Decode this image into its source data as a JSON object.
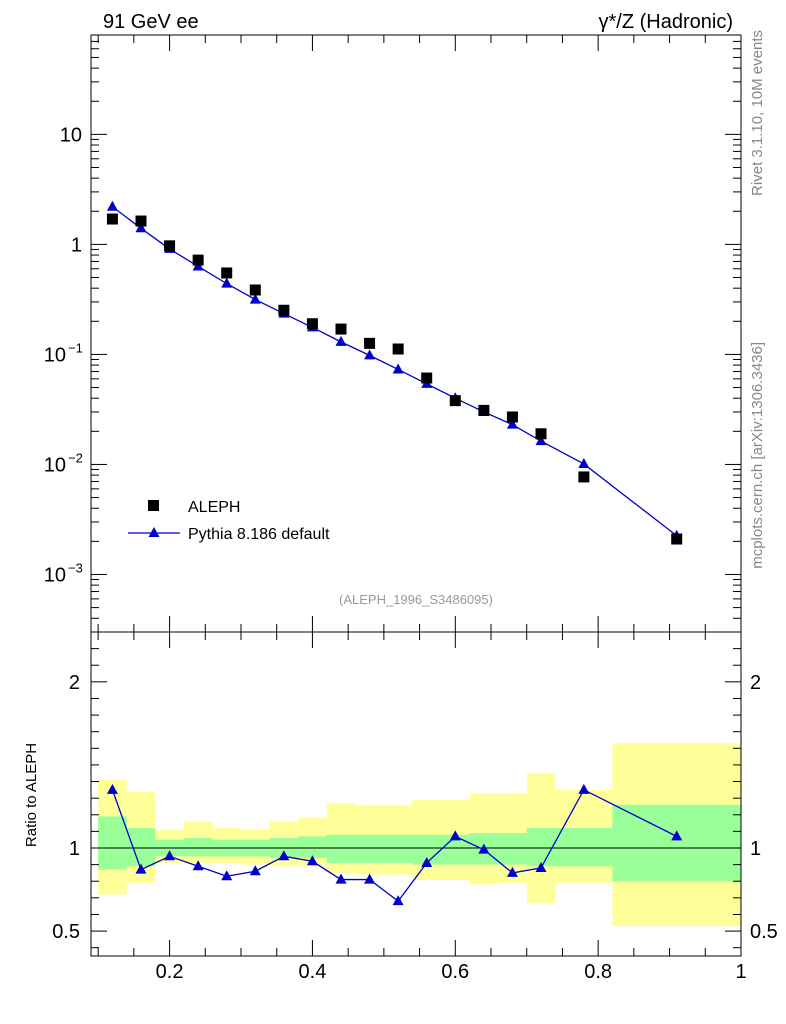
{
  "header": {
    "left_title": "91 GeV ee",
    "right_title_prefix": "γ*/Z (Hadronic)"
  },
  "side_labels": {
    "top": "Rivet 3.1.10,  10M events",
    "bottom": "mcplots.cern.ch [arXiv:1306.3436]"
  },
  "analysis_id": "(ALEPH_1996_S3486095)",
  "legend": {
    "data_label": "ALEPH",
    "mc_label": "Pythia 8.186 default"
  },
  "colors": {
    "mc": "#0000cc",
    "band_inner": "#99ff99",
    "band_outer": "#ffff99",
    "data": "#000000"
  },
  "chart_data": [
    {
      "type": "scatter",
      "panel": "main",
      "yscale": "log",
      "xlim": [
        0.09,
        1.0
      ],
      "ylim": [
        0.0003,
        80
      ],
      "y_tick_labels": [
        {
          "value": 10,
          "label": "10"
        },
        {
          "value": 1,
          "label": "1"
        },
        {
          "value": 0.1,
          "label": "10",
          "exp": "−1"
        },
        {
          "value": 0.01,
          "label": "10",
          "exp": "−2"
        },
        {
          "value": 0.001,
          "label": "10",
          "exp": "−3"
        }
      ],
      "series": [
        {
          "name": "ALEPH",
          "marker": "square",
          "x": [
            0.12,
            0.16,
            0.2,
            0.24,
            0.28,
            0.32,
            0.36,
            0.4,
            0.44,
            0.48,
            0.52,
            0.56,
            0.6,
            0.64,
            0.68,
            0.72,
            0.78,
            0.91
          ],
          "y": [
            1.7,
            1.63,
            0.97,
            0.72,
            0.55,
            0.385,
            0.252,
            0.19,
            0.17,
            0.126,
            0.112,
            0.061,
            0.038,
            0.031,
            0.027,
            0.019,
            0.0077,
            0.0021
          ]
        },
        {
          "name": "Pythia 8.186 default",
          "marker": "triangle",
          "x": [
            0.12,
            0.16,
            0.2,
            0.24,
            0.28,
            0.32,
            0.36,
            0.4,
            0.44,
            0.48,
            0.52,
            0.56,
            0.6,
            0.64,
            0.68,
            0.72,
            0.78,
            0.91
          ],
          "y": [
            2.2,
            1.4,
            0.91,
            0.63,
            0.44,
            0.315,
            0.235,
            0.176,
            0.13,
            0.098,
            0.073,
            0.054,
            0.04,
            0.03,
            0.023,
            0.0163,
            0.0101,
            0.00225
          ]
        }
      ]
    },
    {
      "type": "line",
      "panel": "ratio",
      "ylabel": "Ratio to ALEPH",
      "xlim": [
        0.09,
        1.0
      ],
      "ylim": [
        0.35,
        2.3
      ],
      "x_tick_labels": [
        "0.2",
        "0.4",
        "0.6",
        "0.8",
        "1"
      ],
      "x_ticks": [
        0.2,
        0.4,
        0.6,
        0.8,
        1.0
      ],
      "y_tick_labels": [
        "0.5",
        "1",
        "2"
      ],
      "y_ticks": [
        0.5,
        1.0,
        2.0
      ],
      "bands": {
        "bin_edges": [
          [
            0.1,
            0.14
          ],
          [
            0.14,
            0.18
          ],
          [
            0.18,
            0.22
          ],
          [
            0.22,
            0.26
          ],
          [
            0.26,
            0.3
          ],
          [
            0.3,
            0.34
          ],
          [
            0.34,
            0.38
          ],
          [
            0.38,
            0.42
          ],
          [
            0.42,
            0.46
          ],
          [
            0.46,
            0.5
          ],
          [
            0.5,
            0.54
          ],
          [
            0.54,
            0.58
          ],
          [
            0.58,
            0.62
          ],
          [
            0.62,
            0.66
          ],
          [
            0.66,
            0.7
          ],
          [
            0.7,
            0.74
          ],
          [
            0.74,
            0.82
          ],
          [
            0.82,
            1.0
          ]
        ],
        "inner_low": [
          0.87,
          0.89,
          0.95,
          0.95,
          0.95,
          0.95,
          0.94,
          0.94,
          0.91,
          0.91,
          0.91,
          0.9,
          0.9,
          0.9,
          0.9,
          0.89,
          0.89,
          0.8
        ],
        "inner_high": [
          1.19,
          1.12,
          1.05,
          1.06,
          1.05,
          1.05,
          1.06,
          1.07,
          1.08,
          1.08,
          1.08,
          1.08,
          1.08,
          1.09,
          1.09,
          1.12,
          1.12,
          1.26
        ],
        "outer_low": [
          0.72,
          0.79,
          0.91,
          0.91,
          0.91,
          0.9,
          0.89,
          0.89,
          0.85,
          0.84,
          0.84,
          0.81,
          0.81,
          0.78,
          0.79,
          0.67,
          0.79,
          0.53
        ],
        "outer_high": [
          1.41,
          1.34,
          1.11,
          1.16,
          1.12,
          1.11,
          1.16,
          1.18,
          1.27,
          1.26,
          1.26,
          1.29,
          1.29,
          1.33,
          1.33,
          1.45,
          1.35,
          1.63
        ]
      },
      "series": [
        {
          "name": "Pythia 8.186 default / ALEPH",
          "x": [
            0.12,
            0.16,
            0.2,
            0.24,
            0.28,
            0.32,
            0.36,
            0.4,
            0.44,
            0.48,
            0.52,
            0.56,
            0.6,
            0.64,
            0.68,
            0.72,
            0.78,
            0.91
          ],
          "y": [
            1.35,
            0.87,
            0.95,
            0.89,
            0.83,
            0.86,
            0.95,
            0.92,
            0.81,
            0.81,
            0.68,
            0.91,
            1.07,
            0.99,
            0.85,
            0.88,
            1.35,
            1.07
          ]
        }
      ]
    }
  ]
}
